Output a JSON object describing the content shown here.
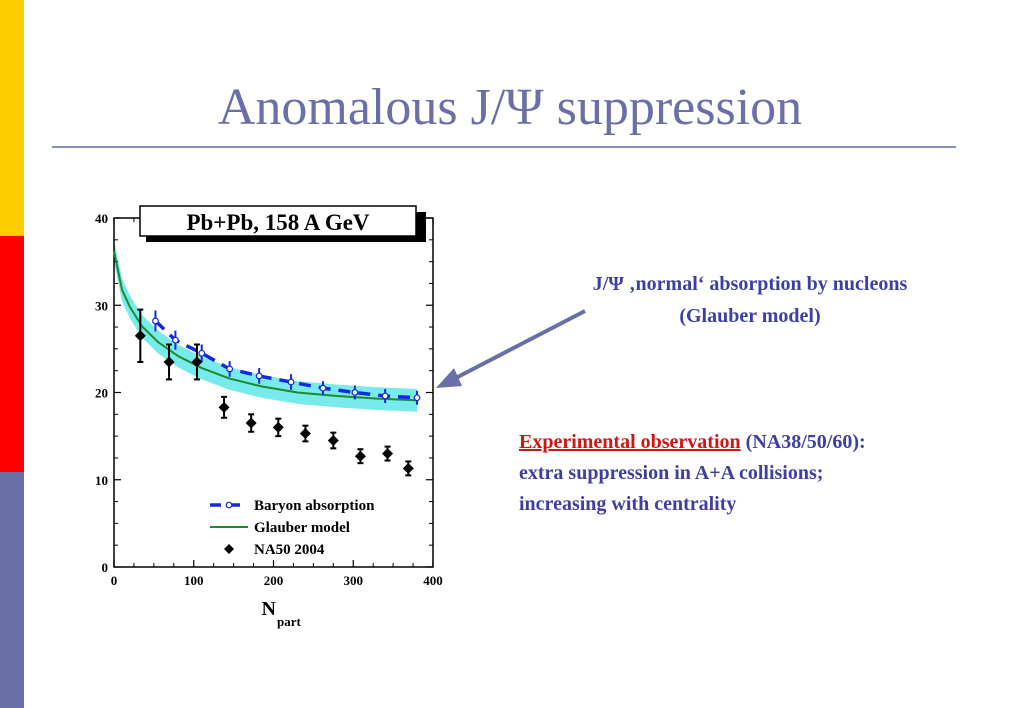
{
  "slide": {
    "title": "Anomalous J/Ψ suppression",
    "stripe_colors": [
      "#FFCC00",
      "#FF0000",
      "#6B6FA8"
    ],
    "title_color": "#6B6FA8",
    "rule_color": "#8A8FC0"
  },
  "annotations": {
    "normal_line1": "J/Ψ ‚normal‘ absorption by nucleons",
    "normal_line2": "(Glauber model)",
    "exp_red": "Experimental observation",
    "exp_ref": " (NA38/50/60):",
    "exp_line2": "extra suppression in A+A collisions;",
    "exp_line3": "increasing with centrality",
    "arrow_color": "#6B6FA8"
  },
  "chart_data": {
    "type": "scatter",
    "title": "Pb+Pb, 158 A GeV",
    "xlabel": "N",
    "xlabel_sub": "part",
    "ylabel": "",
    "xlim": [
      0,
      400
    ],
    "ylim": [
      0,
      40
    ],
    "xticks": [
      0,
      100,
      200,
      300,
      400
    ],
    "yticks": [
      0,
      10,
      20,
      30,
      40
    ],
    "xtick_labels": [
      "0",
      "100",
      "200",
      "300",
      "400"
    ],
    "ytick_labels": [
      "0",
      "10",
      "20",
      "30",
      "40"
    ],
    "legend_position": "bottom-right",
    "legend": [
      "Baryon absorption",
      "Glauber model",
      "NA50 2004"
    ],
    "series": [
      {
        "name": "Baryon absorption",
        "style": "dashed-line-open-circles",
        "color": "#1428E0",
        "x": [
          52,
          77,
          110,
          145,
          182,
          222,
          262,
          302,
          340,
          380
        ],
        "y": [
          28.2,
          26.0,
          24.5,
          22.7,
          21.9,
          21.2,
          20.5,
          20.0,
          19.6,
          19.4
        ],
        "err": [
          1.2,
          1.1,
          1.0,
          0.9,
          0.9,
          0.9,
          0.8,
          0.8,
          0.8,
          0.8
        ]
      },
      {
        "name": "Glauber model",
        "style": "solid-line-with-band",
        "color": "#1E8A2E",
        "band_color": "#5FE8E8",
        "x": [
          0,
          5,
          10,
          20,
          35,
          55,
          80,
          110,
          145,
          185,
          230,
          280,
          330,
          380
        ],
        "y": [
          36.2,
          34.0,
          31.8,
          29.8,
          27.6,
          25.8,
          24.2,
          22.8,
          21.6,
          20.7,
          20.0,
          19.6,
          19.3,
          19.1
        ],
        "band": 1.3
      },
      {
        "name": "NA50 2004",
        "style": "filled-diamond-with-errorbars",
        "color": "#000000",
        "x": [
          33,
          69,
          104,
          138,
          172,
          206,
          240,
          275,
          309,
          343,
          369
        ],
        "y": [
          26.5,
          23.5,
          23.5,
          18.3,
          16.5,
          16.0,
          15.3,
          14.5,
          12.7,
          13.0,
          11.3
        ],
        "err": [
          3.0,
          2.0,
          2.0,
          1.2,
          1.0,
          1.0,
          0.9,
          0.9,
          0.8,
          0.8,
          0.8
        ]
      }
    ]
  }
}
